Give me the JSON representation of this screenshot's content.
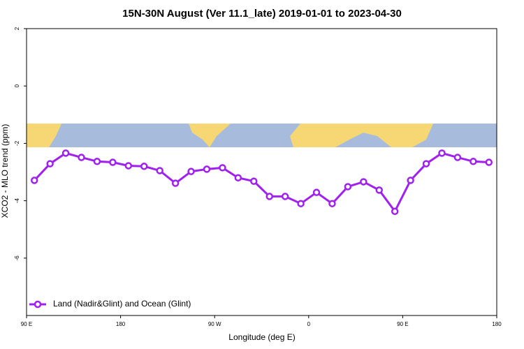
{
  "chart_data": {
    "type": "line",
    "title": "15N-30N August (Ver 11.1_late)   2019-01-01 to 2023-04-30",
    "x_label": "Longitude (deg E)",
    "y_label": "XCO2 - MLO trend (ppm)",
    "x": [
      97.5,
      112.5,
      127.5,
      142.5,
      157.5,
      172.5,
      187.5,
      202.5,
      217.5,
      232.5,
      247.5,
      262.5,
      277.5,
      292.5,
      307.5,
      322.5,
      337.5,
      352.5,
      367.5,
      382.5,
      397.5,
      412.5,
      427.5,
      442.5,
      457.5,
      472.5,
      487.5,
      502.5,
      517.5,
      532.5
    ],
    "series": [
      {
        "name": "Land (Nadir&Glint) and Ocean (Glint)",
        "color": "#a020f0",
        "values": [
          -3.29,
          -2.71,
          -2.34,
          -2.49,
          -2.63,
          -2.66,
          -2.78,
          -2.8,
          -2.95,
          -3.39,
          -2.98,
          -2.9,
          -2.85,
          -3.2,
          -3.32,
          -3.85,
          -3.85,
          -4.1,
          -3.71,
          -4.1,
          -3.51,
          -3.34,
          -3.63,
          -4.37,
          -3.29,
          -2.71,
          -2.34,
          -2.49,
          -2.63,
          -2.66
        ]
      }
    ],
    "xlim": [
      90,
      540
    ],
    "xticks": [
      {
        "value": 90,
        "label": "90 E"
      },
      180,
      {
        "value": 270,
        "label": "90 W"
      },
      {
        "value": 360,
        "label": "0"
      },
      {
        "value": 450,
        "label": "90 E"
      },
      {
        "value": 540,
        "label": "180"
      }
    ],
    "ylim": [
      -8,
      2
    ],
    "yticks": [
      2,
      0,
      -2,
      -4,
      -6
    ],
    "legend": "bottomleft"
  }
}
